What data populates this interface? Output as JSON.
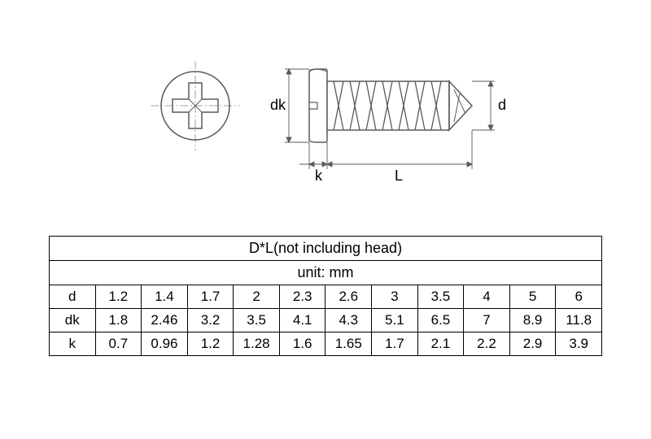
{
  "diagram": {
    "labels": {
      "dk": "dk",
      "d": "d",
      "k": "k",
      "L": "L"
    },
    "colors": {
      "stroke": "#5a5a5a",
      "fill_light": "#ffffff",
      "centerline": "#888888"
    }
  },
  "table": {
    "title": "D*L(not including head)",
    "unit": "unit: mm",
    "rows": [
      {
        "label": "d",
        "values": [
          "1.2",
          "1.4",
          "1.7",
          "2",
          "2.3",
          "2.6",
          "3",
          "3.5",
          "4",
          "5",
          "6"
        ]
      },
      {
        "label": "dk",
        "values": [
          "1.8",
          "2.46",
          "3.2",
          "3.5",
          "4.1",
          "4.3",
          "5.1",
          "6.5",
          "7",
          "8.9",
          "11.8"
        ]
      },
      {
        "label": "k",
        "values": [
          "0.7",
          "0.96",
          "1.2",
          "1.28",
          "1.6",
          "1.65",
          "1.7",
          "2.1",
          "2.2",
          "2.9",
          "3.9"
        ]
      }
    ],
    "column_count": 11
  }
}
